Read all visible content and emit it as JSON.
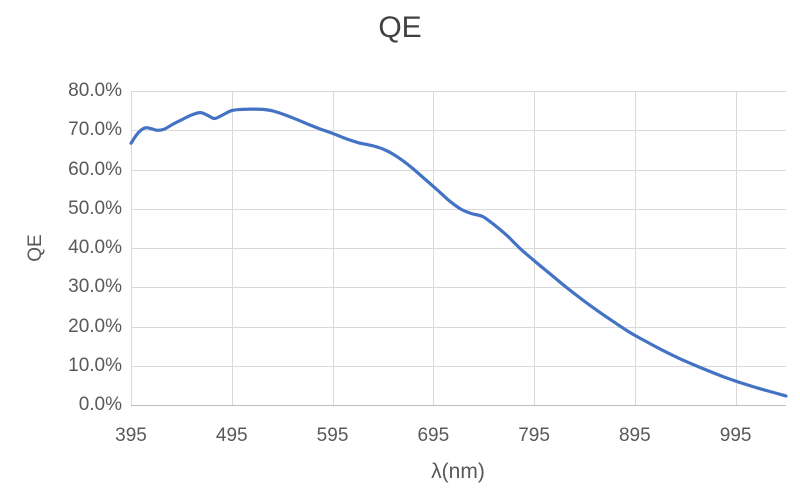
{
  "chart": {
    "title": "QE",
    "xlabel": "λ(nm)",
    "ylabel": "QE"
  },
  "colors": {
    "line": "#4472C4",
    "gridline": "#D9D9D9",
    "axis_line": "#BFBFBF",
    "tick_text": "#595959",
    "title_text": "#404040",
    "background": "#FFFFFF"
  },
  "chart_data": {
    "type": "line",
    "title": "QE",
    "xlabel": "λ(nm)",
    "ylabel": "QE",
    "legend_position": "none",
    "grid": true,
    "smooth": true,
    "line_color": "#4472C4",
    "xlim": [
      395,
      1045
    ],
    "ylim_percent": [
      0,
      80
    ],
    "x_ticks": [
      395,
      495,
      595,
      695,
      795,
      895,
      995
    ],
    "y_ticks_percent": [
      0,
      10,
      20,
      30,
      40,
      50,
      60,
      70,
      80
    ],
    "y_tick_labels": [
      "0.0%",
      "10.0%",
      "20.0%",
      "30.0%",
      "40.0%",
      "50.0%",
      "60.0%",
      "70.0%",
      "80.0%"
    ],
    "series": [
      {
        "name": "QE",
        "x_nm": [
          395,
          402,
          409,
          415,
          421,
          428,
          437,
          447,
          456,
          464,
          471,
          478,
          486,
          495,
          505,
          515,
          526,
          536,
          547,
          559,
          571,
          583,
          595,
          608,
          621,
          634,
          647,
          660,
          673,
          686,
          699,
          711,
          723,
          734,
          744,
          756,
          768,
          781,
          795,
          810,
          826,
          842,
          858,
          874,
          890,
          906,
          922,
          938,
          954,
          970,
          986,
          1002,
          1017,
          1031,
          1045
        ],
        "qe_percent": [
          66.7,
          69.3,
          70.6,
          70.4,
          70.0,
          70.3,
          71.6,
          72.9,
          74.0,
          74.5,
          73.8,
          73.0,
          73.9,
          75.0,
          75.3,
          75.4,
          75.3,
          74.9,
          74.0,
          72.8,
          71.5,
          70.3,
          69.2,
          67.9,
          66.8,
          66.1,
          65.0,
          63.1,
          60.6,
          57.7,
          54.8,
          52.0,
          49.8,
          48.7,
          48.0,
          45.8,
          43.2,
          39.9,
          36.8,
          33.6,
          30.2,
          27.0,
          24.0,
          21.2,
          18.5,
          16.2,
          14.0,
          12.0,
          10.2,
          8.5,
          6.9,
          5.5,
          4.3,
          3.3,
          2.3
        ]
      }
    ]
  }
}
